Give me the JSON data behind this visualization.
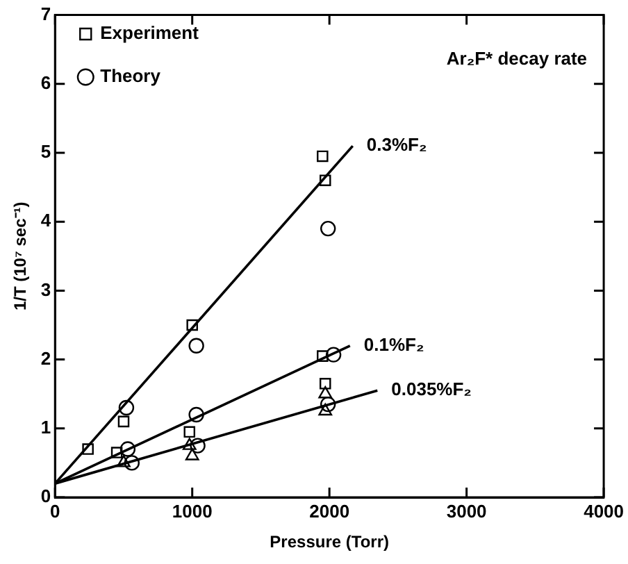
{
  "chart_data": {
    "type": "scatter",
    "title": "Ar₂F* decay rate",
    "xlabel": "Pressure (Torr)",
    "ylabel": "1/T (10⁷ sec⁻¹)",
    "xlim": [
      0,
      4000
    ],
    "xticks": [
      0,
      1000,
      2000,
      3000,
      4000
    ],
    "ylim": [
      0,
      7
    ],
    "yticks": [
      0,
      1,
      2,
      3,
      4,
      5,
      6,
      7
    ],
    "grid": false,
    "legend": "top left",
    "series": [
      {
        "name": "Experiment",
        "type": "scatter",
        "marker": "square",
        "color": "#000000",
        "x": [
          240,
          450,
          500,
          1000,
          980,
          1950,
          1970,
          1950,
          1970
        ],
        "values": [
          0.7,
          0.65,
          1.1,
          2.5,
          0.95,
          4.95,
          4.6,
          2.05,
          1.65
        ]
      },
      {
        "type": "scatter",
        "marker": "triangle",
        "color": "#000000",
        "x": [
          500,
          980,
          1000,
          1970,
          1970
        ],
        "values": [
          0.5,
          0.75,
          0.6,
          1.5,
          1.25
        ]
      },
      {
        "name": "Theory",
        "type": "scatter",
        "marker": "circle",
        "color": "#000000",
        "x": [
          520,
          530,
          560,
          1030,
          1030,
          1040,
          1990,
          2030,
          1990
        ],
        "values": [
          1.3,
          0.7,
          0.5,
          2.2,
          1.2,
          0.75,
          3.9,
          2.07,
          1.35
        ]
      },
      {
        "type": "line",
        "marker": "none",
        "color": "#000000",
        "x": [
          0,
          2170
        ],
        "values": [
          0.2,
          5.1
        ]
      },
      {
        "type": "line",
        "marker": "none",
        "color": "#000000",
        "x": [
          0,
          2150
        ],
        "values": [
          0.2,
          2.2
        ]
      },
      {
        "type": "line",
        "marker": "none",
        "color": "#000000",
        "x": [
          0,
          2350
        ],
        "values": [
          0.2,
          1.55
        ]
      }
    ],
    "annotations": [
      {
        "text": "0.3%F₂",
        "x": 2170,
        "y": 5.1
      },
      {
        "text": "0.1%F₂",
        "x": 2150,
        "y": 2.2
      },
      {
        "text": "0.035%F₂",
        "x": 2350,
        "y": 1.55
      }
    ]
  }
}
